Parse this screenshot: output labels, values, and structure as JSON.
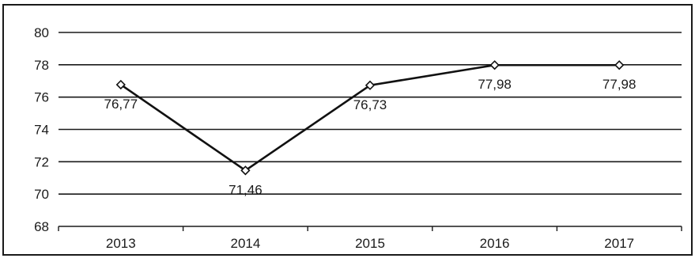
{
  "chart_data": {
    "type": "line",
    "categories": [
      "2013",
      "2014",
      "2015",
      "2016",
      "2017"
    ],
    "series": [
      {
        "values": [
          76.77,
          71.46,
          76.73,
          77.98,
          77.98
        ],
        "labels": [
          "76,77",
          "71,46",
          "76,73",
          "77,98",
          "77,98"
        ]
      }
    ],
    "ylim": [
      68,
      80
    ],
    "yticks": [
      "68",
      "70",
      "72",
      "74",
      "76",
      "78",
      "80"
    ],
    "grid": true,
    "legend": "none",
    "line_color": "#111111",
    "marker": "diamond-open"
  }
}
